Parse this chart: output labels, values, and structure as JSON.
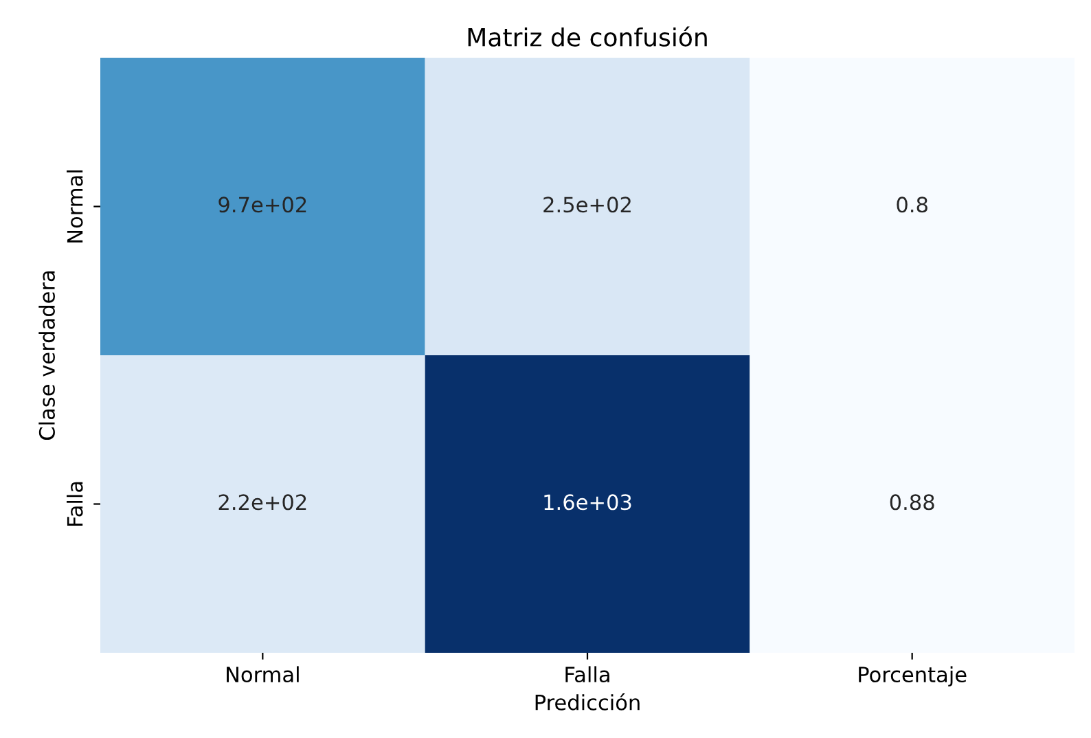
{
  "chart_data": {
    "type": "heatmap",
    "title": "Matriz de confusión",
    "xlabel": "Predicción",
    "ylabel": "Clase verdadera",
    "categories": [
      "Normal",
      "Falla",
      "Porcentaje"
    ],
    "y_categories": [
      "Normal",
      "Falla"
    ],
    "cells": [
      [
        970,
        250,
        0.8
      ],
      [
        220,
        1600,
        0.88
      ]
    ],
    "cell_labels": [
      [
        "9.7e+02",
        "2.5e+02",
        "0.8"
      ],
      [
        "2.2e+02",
        "1.6e+03",
        "0.88"
      ]
    ]
  }
}
